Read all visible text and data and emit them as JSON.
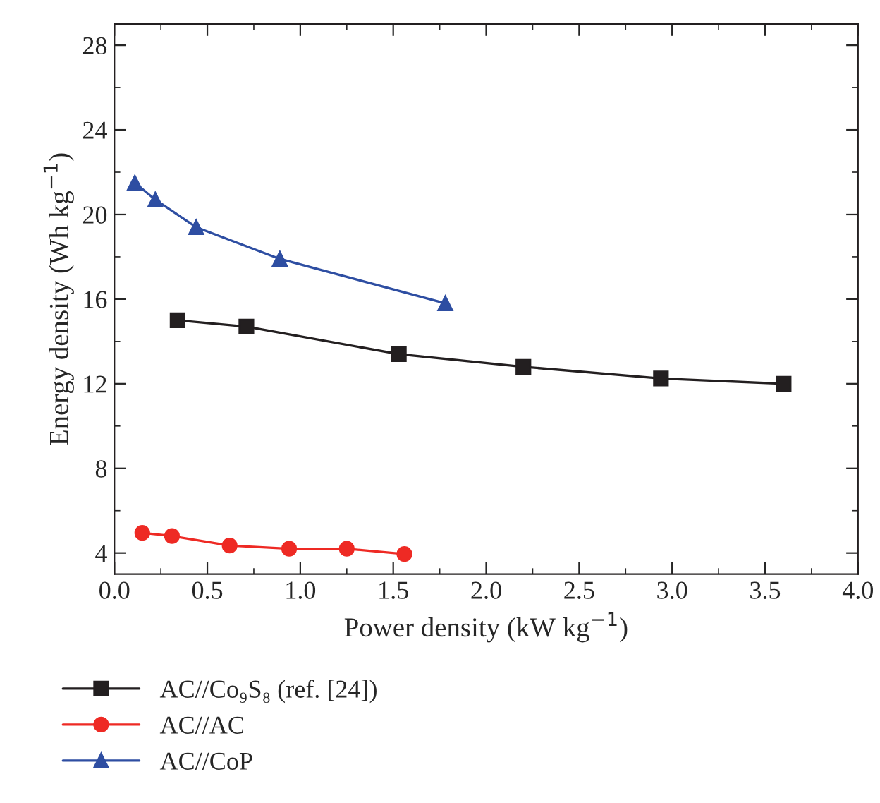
{
  "chart_data": {
    "type": "line",
    "xlabel": "Power density (kW kg$^{−1}$)",
    "ylabel": "Energy density (Wh kg$^{−1}$)",
    "xlim": [
      0,
      4
    ],
    "xticks": [
      {
        "value": 0,
        "label": "0.0"
      },
      0.5,
      {
        "value": 1,
        "label": "1.0"
      },
      1.5,
      {
        "value": 2,
        "label": "2.0"
      },
      2.5,
      {
        "value": 3,
        "label": "3.0"
      },
      3.5,
      {
        "value": 4,
        "label": "4.0"
      }
    ],
    "ylim": [
      3,
      29
    ],
    "yticks": [
      4,
      8,
      12,
      16,
      20,
      24,
      28
    ],
    "grid": false,
    "legend": "bottom",
    "series": [
      {
        "name": "AC//Co₉S₈ (ref. [24])",
        "color": "#231f20",
        "marker": "square",
        "x": [
          0.34,
          0.71,
          1.53,
          2.2,
          2.94,
          3.6
        ],
        "values": [
          15.0,
          14.7,
          13.4,
          12.8,
          12.25,
          12.0
        ]
      },
      {
        "name": "AC//AC",
        "color": "#ee2a24",
        "marker": "circle",
        "x": [
          0.15,
          0.31,
          0.62,
          0.94,
          1.25,
          1.56
        ],
        "values": [
          4.95,
          4.8,
          4.35,
          4.2,
          4.2,
          3.95
        ]
      },
      {
        "name": "AC//CoP",
        "color": "#2e4ea2",
        "marker": "triangle",
        "x": [
          0.11,
          0.22,
          0.44,
          0.89,
          1.78
        ],
        "values": [
          21.5,
          20.7,
          19.4,
          17.9,
          15.8
        ]
      }
    ]
  }
}
